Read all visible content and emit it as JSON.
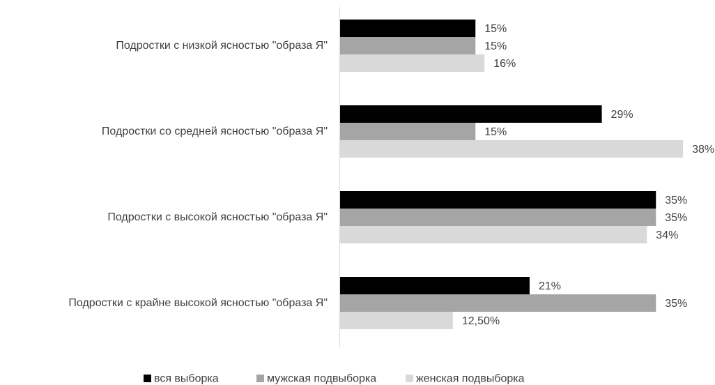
{
  "chart_data": {
    "type": "bar",
    "orientation": "horizontal",
    "categories": [
      "Подростки с низкой ясностью \"образа Я\"",
      "Подростки со средней ясностью \"образа Я\"",
      "Подростки с  высокой ясностью \"образа Я\"",
      "Подростки с крайне высокой ясностью \"образа Я\""
    ],
    "series": [
      {
        "name": "вся выборка",
        "color": "#000000",
        "values": [
          15,
          29,
          35,
          21
        ],
        "labels": [
          "15%",
          "29%",
          "35%",
          "21%"
        ]
      },
      {
        "name": "мужская подвыборка",
        "color": "#a5a5a5",
        "values": [
          15,
          15,
          35,
          35
        ],
        "labels": [
          "15%",
          "15%",
          "35%",
          "35%"
        ]
      },
      {
        "name": "женская подвыборка",
        "color": "#d9d9d9",
        "values": [
          16,
          38,
          34,
          12.5
        ],
        "labels": [
          "16%",
          "38%",
          "34%",
          "12,50%"
        ]
      }
    ],
    "xlim": [
      0,
      38
    ],
    "legend_position": "bottom",
    "grid": false
  }
}
